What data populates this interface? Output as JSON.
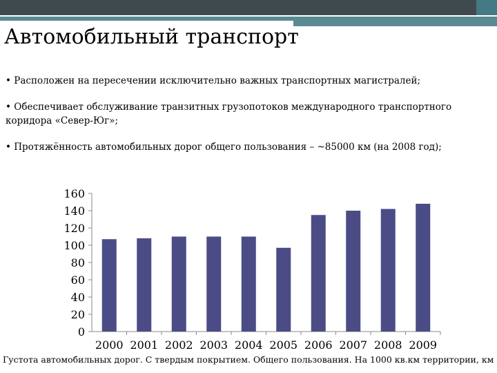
{
  "slide": {
    "title": "Автомобильный транспорт",
    "bullets": [
      "• Расположен на пересечении исключительно важных транспортных магистралей;",
      "• Обеспечивает обслуживание транзитных грузопотоков международного транспортного коридора «Север-Юг»;",
      "• Протяжённость автомобильных дорог общего пользования – ~85000 км (на 2008 год);"
    ],
    "caption": "Густота автомобильных дорог. С твердым покрытием. Общего пользования. На 1000 кв.км территории, км"
  },
  "colors": {
    "bar": "#4b4c86",
    "axis": "#8a8a8a",
    "band_dark": "#3f4a4e",
    "band_teal": "#447a83"
  },
  "chart_data": {
    "type": "bar",
    "categories": [
      "2000",
      "2001",
      "2002",
      "2003",
      "2004",
      "2005",
      "2006",
      "2007",
      "2008",
      "2009"
    ],
    "values": [
      107,
      108,
      110,
      110,
      110,
      97,
      135,
      140,
      142,
      148
    ],
    "ylim": [
      0,
      160
    ],
    "yticks": [
      0,
      20,
      40,
      60,
      80,
      100,
      120,
      140,
      160
    ],
    "grid": false,
    "legend": "none"
  }
}
